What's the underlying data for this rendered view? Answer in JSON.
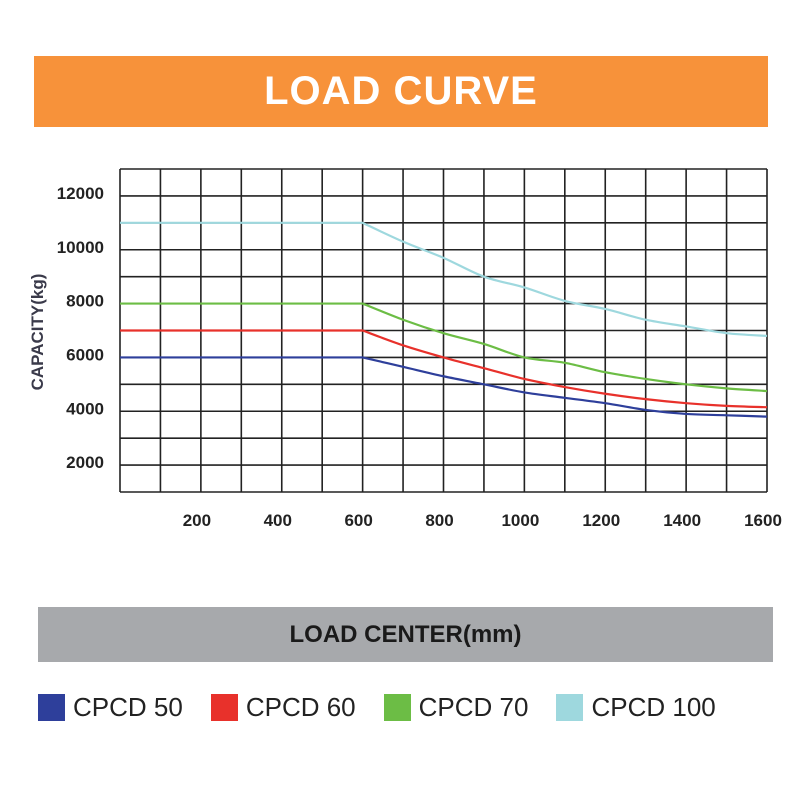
{
  "chart_data": {
    "type": "line",
    "title": "LOAD CURVE",
    "xlabel": "LOAD CENTER(mm)",
    "ylabel": "CAPACITY(kg)",
    "xlim": [
      0,
      1600
    ],
    "ylim": [
      1000,
      13000
    ],
    "xticks": [
      200,
      400,
      600,
      800,
      1000,
      1200,
      1400,
      1600
    ],
    "yticks": [
      2000,
      4000,
      6000,
      8000,
      10000,
      12000
    ],
    "grid": true,
    "legend_position": "bottom",
    "x": [
      0,
      600,
      700,
      800,
      900,
      1000,
      1100,
      1200,
      1300,
      1400,
      1500,
      1600
    ],
    "series": [
      {
        "name": "CPCD 50",
        "color": "#2e3f9b",
        "values": [
          6000,
          6000,
          5650,
          5300,
          5000,
          4700,
          4500,
          4300,
          4050,
          3900,
          3850,
          3800
        ]
      },
      {
        "name": "CPCD 60",
        "color": "#e8312b",
        "values": [
          7000,
          7000,
          6450,
          6000,
          5600,
          5200,
          4900,
          4650,
          4450,
          4300,
          4200,
          4150
        ]
      },
      {
        "name": "CPCD 70",
        "color": "#6cbd45",
        "values": [
          8000,
          8000,
          7400,
          6900,
          6500,
          6000,
          5800,
          5450,
          5200,
          5000,
          4850,
          4750
        ]
      },
      {
        "name": "CPCD 100",
        "color": "#9ed8de",
        "values": [
          11000,
          11000,
          10300,
          9700,
          9000,
          8600,
          8100,
          7800,
          7400,
          7150,
          6900,
          6800
        ]
      }
    ]
  }
}
